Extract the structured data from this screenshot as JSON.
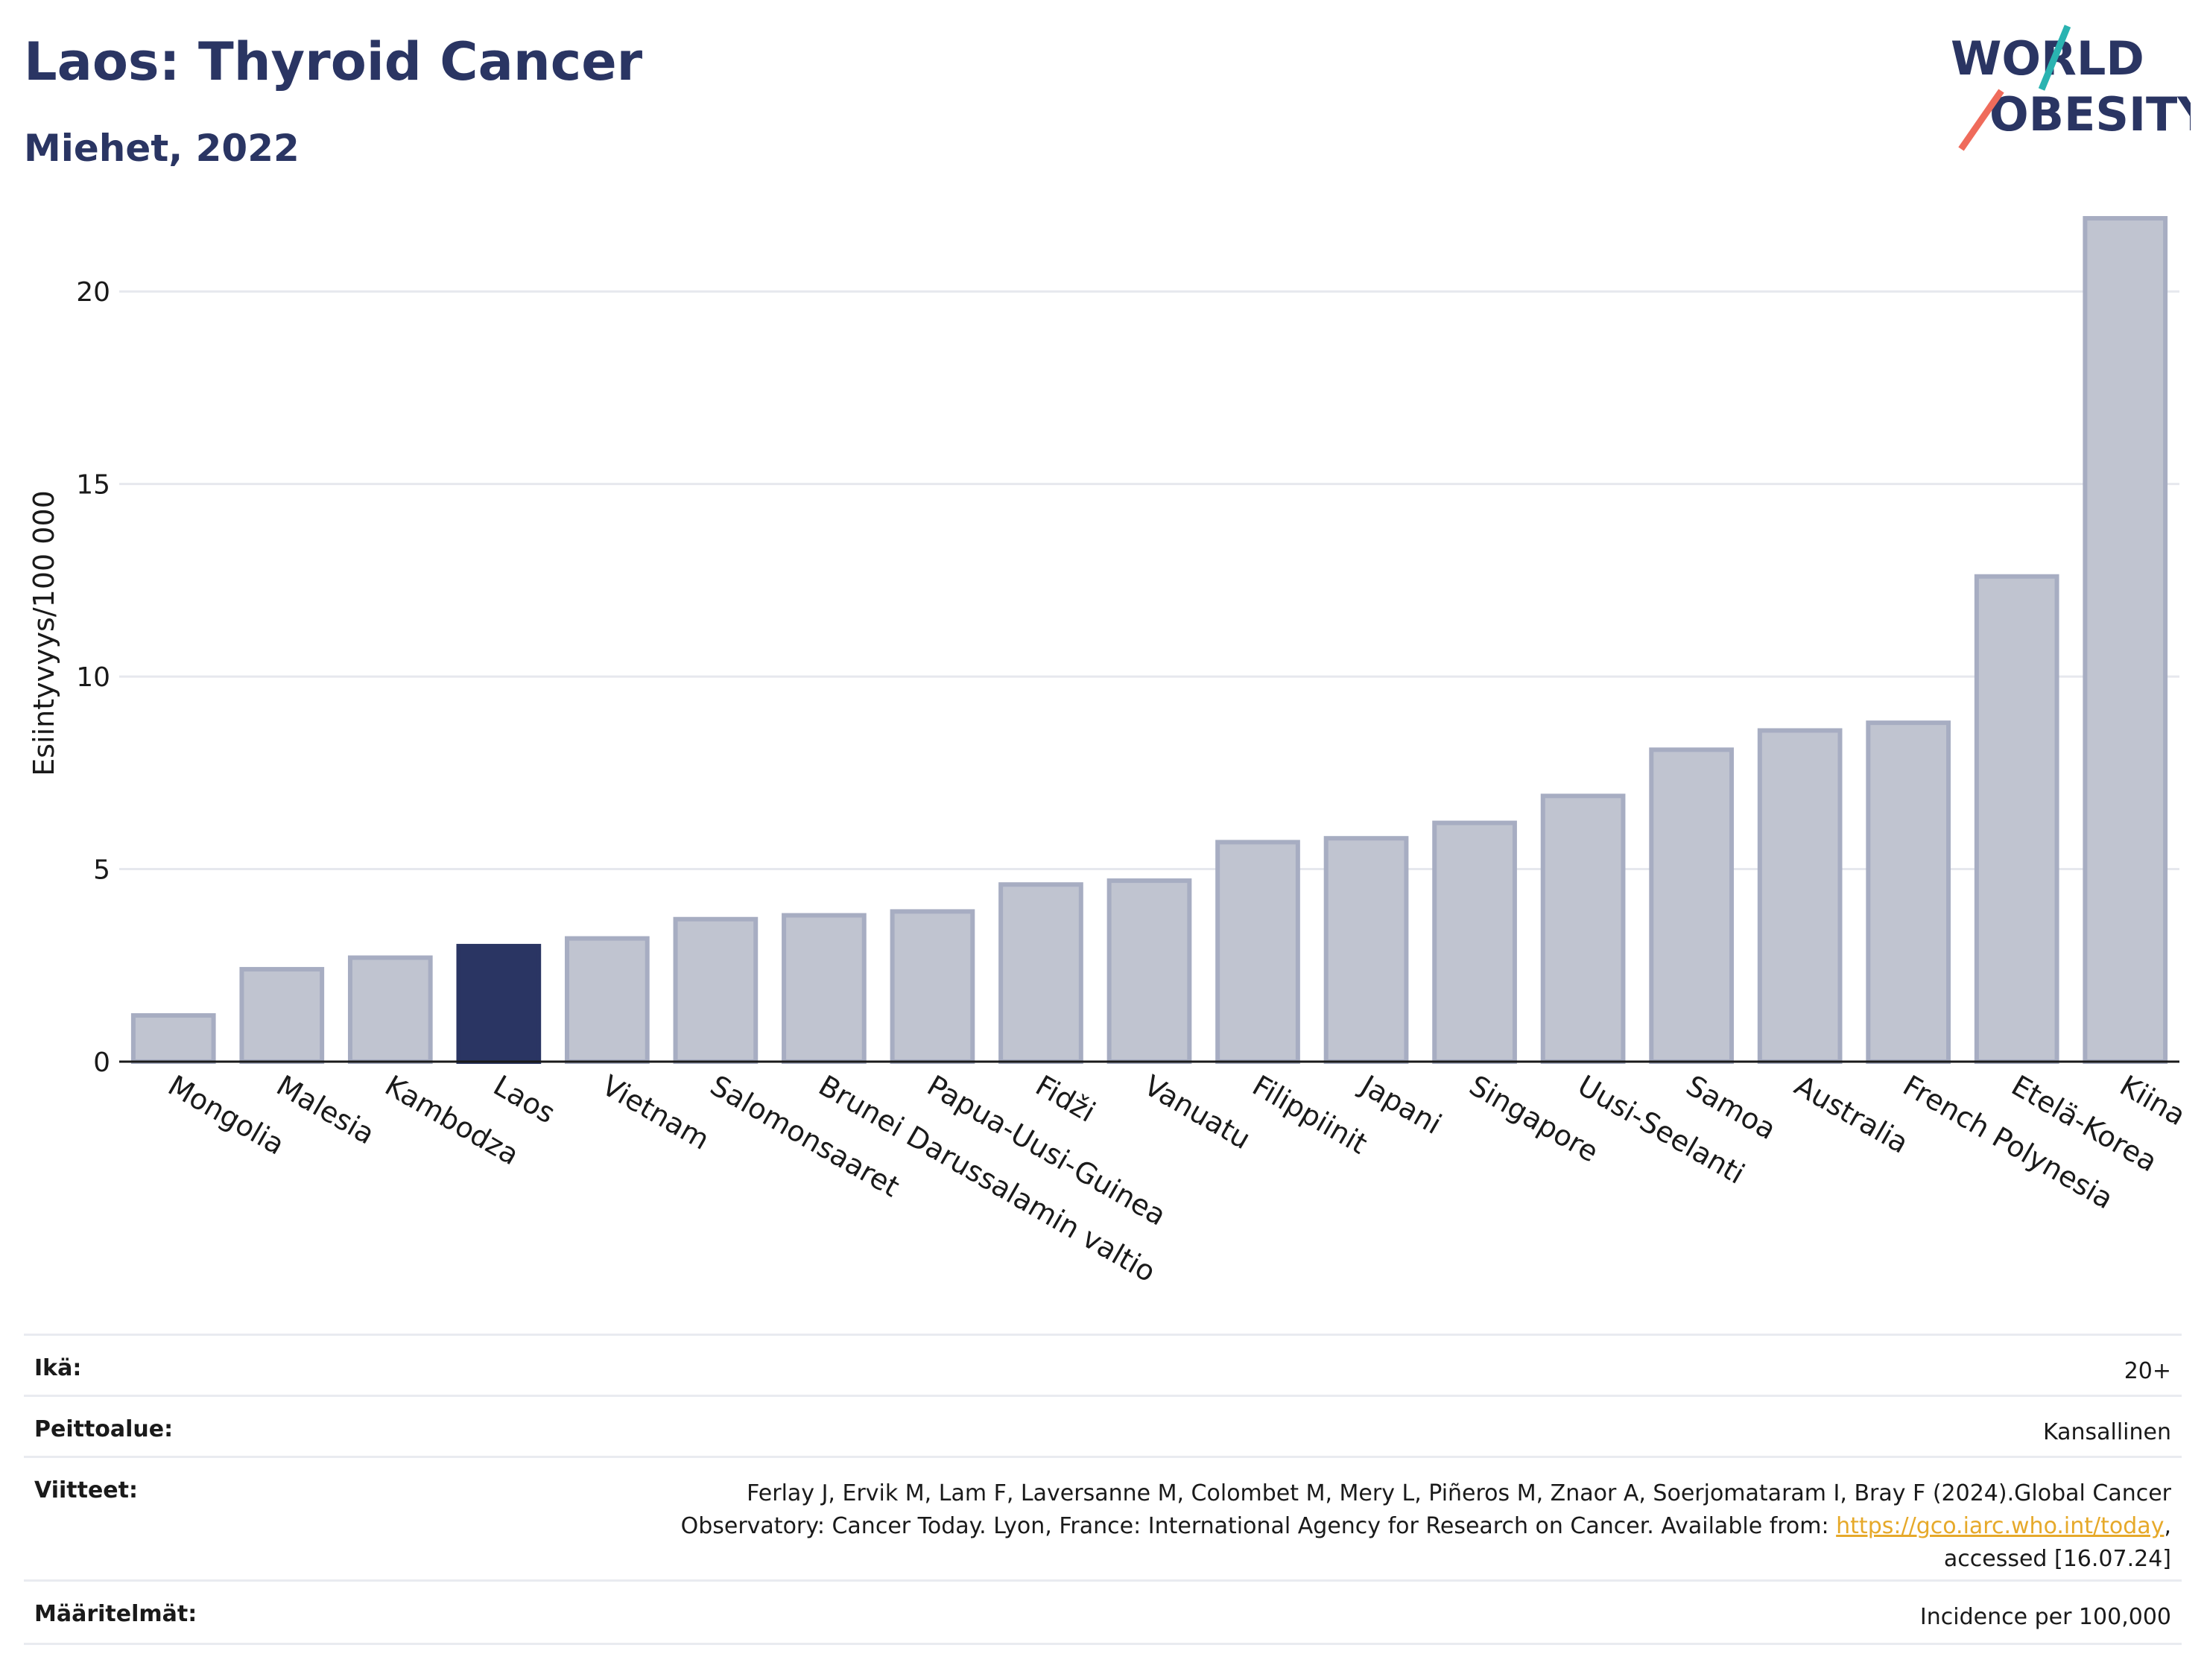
{
  "header": {
    "title": "Laos: Thyroid Cancer",
    "subtitle": "Miehet, 2022"
  },
  "logo": {
    "line1": "WORLD",
    "line2": "OBESITY",
    "text_color": "#2a3563",
    "accent1": "#2ab3b1",
    "accent2": "#ef6b5b"
  },
  "chart_data": {
    "type": "bar",
    "ylabel": "Esiintyvyys/100 000",
    "ylim": [
      0,
      22.5
    ],
    "yticks": [
      0,
      5,
      10,
      15,
      20
    ],
    "grid": true,
    "highlight": "Laos",
    "colors": {
      "bar": "#c0c4d0",
      "bar_edge": "#a7adc2",
      "highlight": "#2a3563"
    },
    "categories": [
      "Mongolia",
      "Malesia",
      "Kambodza",
      "Laos",
      "Vietnam",
      "Salomonsaaret",
      "Brunei Darussalamin valtio",
      "Papua-Uusi-Guinea",
      "Fidži",
      "Vanuatu",
      "Filippiinit",
      "Japani",
      "Singapore",
      "Uusi-Seelanti",
      "Samoa",
      "Australia",
      "French Polynesia",
      "Etelä-Korea",
      "Kiina"
    ],
    "values": [
      1.2,
      2.4,
      2.7,
      3.0,
      3.2,
      3.7,
      3.8,
      3.9,
      4.6,
      4.7,
      5.7,
      5.8,
      6.2,
      6.9,
      8.1,
      8.6,
      8.8,
      12.6,
      21.9
    ]
  },
  "meta": {
    "age_label": "Ikä:",
    "age_value": "20+",
    "coverage_label": "Peittoalue:",
    "coverage_value": "Kansallinen",
    "refs_label": "Viitteet:",
    "refs_line1": "Ferlay J, Ervik M, Lam F, Laversanne M, Colombet M, Mery L, Piñeros M, Znaor A, Soerjomataram I, Bray F (2024).Global Cancer",
    "refs_line2_pre": "Observatory: Cancer Today. Lyon, France: International Agency for Research on Cancer. Available from: ",
    "refs_link": "https://gco.iarc.who.int/today",
    "refs_line2_post": ",",
    "refs_line3": "accessed [16.07.24]",
    "defs_label": "Määritelmät:",
    "defs_value": "Incidence per 100,000"
  }
}
